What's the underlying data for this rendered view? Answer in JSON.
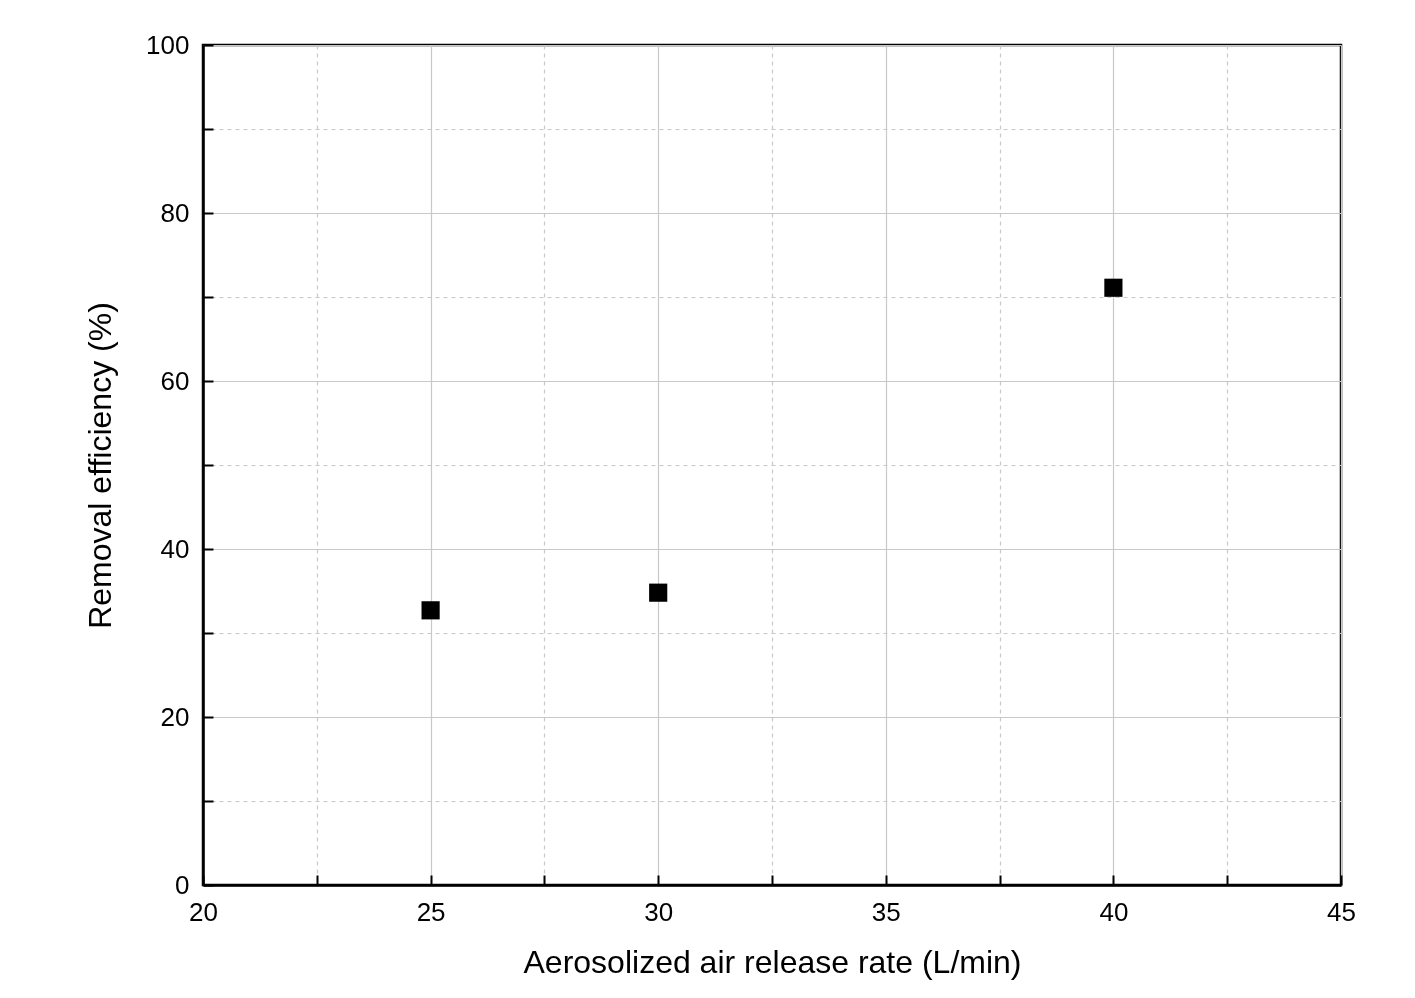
{
  "chart_data": {
    "type": "scatter",
    "xlabel": "Aerosolized air release rate (L/min)",
    "ylabel": "Removal efficiency (%)",
    "x": [
      25,
      30,
      40
    ],
    "series": [
      {
        "color": "#000000",
        "values": [
          32.7,
          34.8,
          71.1
        ]
      }
    ],
    "marker": "square",
    "grid": true,
    "xlim": [
      20,
      45
    ],
    "ylim": [
      0,
      100
    ],
    "xticks": [
      20,
      {
        "value": 22.5,
        "label": null
      },
      25,
      {
        "value": 27.5,
        "label": null
      },
      30,
      {
        "value": 32.5,
        "label": null
      },
      35,
      {
        "value": 37.5,
        "label": null
      },
      40,
      {
        "value": 42.5,
        "label": null
      },
      45
    ],
    "yticks": [
      0,
      {
        "value": 10,
        "label": null
      },
      20,
      {
        "value": 30,
        "label": null
      },
      40,
      {
        "value": 50,
        "label": null
      },
      60,
      {
        "value": 70,
        "label": null
      },
      80,
      {
        "value": 90,
        "label": null
      },
      100
    ]
  }
}
